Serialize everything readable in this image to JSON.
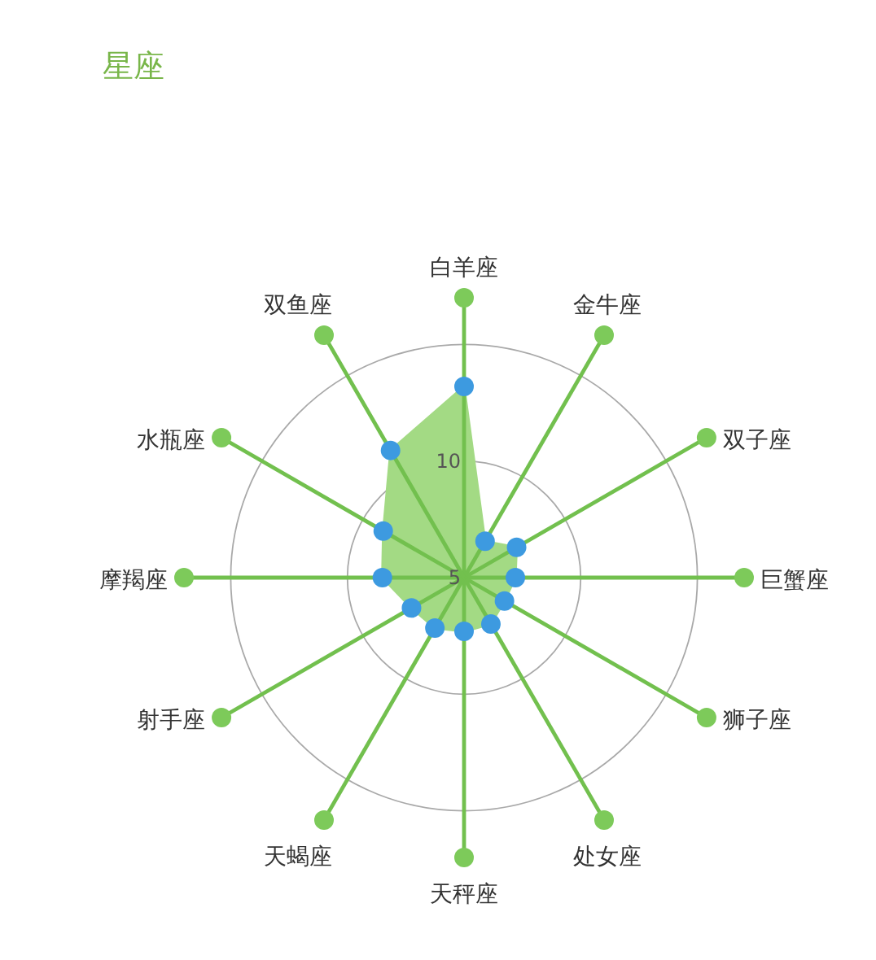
{
  "chart_data": {
    "type": "radar",
    "title": "星座",
    "categories": [
      "白羊座",
      "金牛座",
      "双子座",
      "巨蟹座",
      "狮子座",
      "处女座",
      "天秤座",
      "天蝎座",
      "射手座",
      "摩羯座",
      "水瓶座",
      "双鱼座"
    ],
    "series": [
      {
        "color": "#a3da84",
        "values": [
          13.2,
          6.8,
          7.6,
          7.2,
          7.0,
          7.3,
          7.3,
          7.5,
          7.6,
          8.5,
          9.0,
          11.3
        ]
      }
    ],
    "ylim": [
      5,
      15
    ],
    "yticks": [
      5,
      10
    ],
    "grid": true,
    "marker": "circle"
  }
}
